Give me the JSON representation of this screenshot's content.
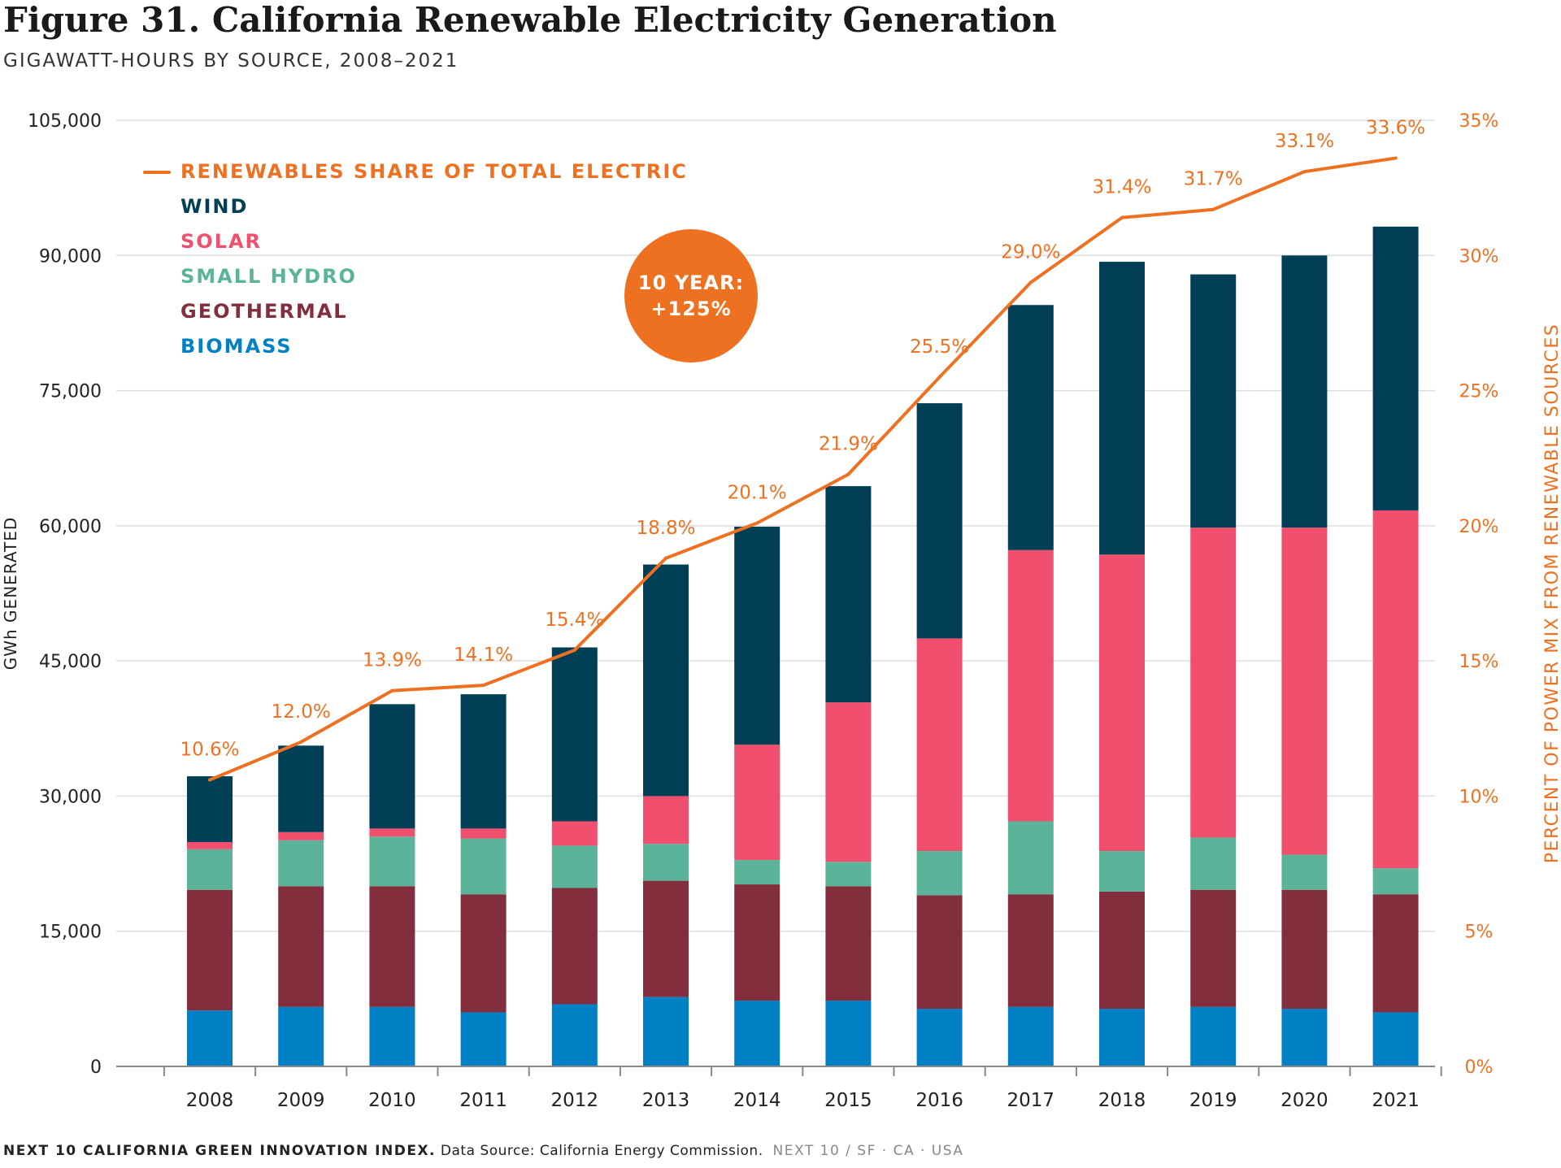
{
  "header": {
    "title": "Figure 31. California Renewable Electricity Generation",
    "subtitle": "GIGAWATT-HOURS BY SOURCE, 2008–2021"
  },
  "badge": {
    "line1": "10 YEAR:",
    "line2": "+125%"
  },
  "footer": {
    "brand": "NEXT 10 CALIFORNIA GREEN INNOVATION INDEX.",
    "source": "Data Source: California Energy Commission.",
    "tag": "NEXT 10  /  SF · CA · USA"
  },
  "colors": {
    "wind": "#003f56",
    "solar": "#f0506e",
    "small_hydro": "#5bb399",
    "geothermal": "#832e3c",
    "biomass": "#0081c6",
    "share_line": "#ee7122",
    "grid": "#dddddd",
    "axis": "#888888"
  },
  "chart_data": {
    "type": "bar",
    "stacked": true,
    "categories": [
      "2008",
      "2009",
      "2010",
      "2011",
      "2012",
      "2013",
      "2014",
      "2015",
      "2016",
      "2017",
      "2018",
      "2019",
      "2020",
      "2021"
    ],
    "ylabel": "GWh GENERATED",
    "ylim": [
      0,
      105000
    ],
    "yticks": [
      0,
      15000,
      30000,
      45000,
      60000,
      75000,
      90000,
      105000
    ],
    "ytick_labels": [
      "0",
      "15,000",
      "30,000",
      "45,000",
      "60,000",
      "75,000",
      "90,000",
      "105,000"
    ],
    "y2label": "PERCENT OF POWER MIX FROM RENEWABLE SOURCES",
    "y2lim": [
      0,
      35
    ],
    "y2ticks": [
      0,
      5,
      10,
      15,
      20,
      25,
      30,
      35
    ],
    "y2tick_labels": [
      "0%",
      "5%",
      "10%",
      "15%",
      "20%",
      "25%",
      "30%",
      "35%"
    ],
    "grid": true,
    "legend_position": "top-left",
    "series": [
      {
        "name": "BIOMASS",
        "color_key": "biomass",
        "values": [
          6200,
          6600,
          6600,
          6000,
          6900,
          7700,
          7300,
          7300,
          6400,
          6600,
          6400,
          6600,
          6400,
          6000
        ]
      },
      {
        "name": "GEOTHERMAL",
        "color_key": "geothermal",
        "values": [
          13400,
          13400,
          13400,
          13100,
          12900,
          12900,
          12900,
          12700,
          12600,
          12500,
          13000,
          13000,
          13200,
          13100
        ]
      },
      {
        "name": "SMALL HYDRO",
        "color_key": "small_hydro",
        "values": [
          4500,
          5100,
          5500,
          6200,
          4700,
          4100,
          2700,
          2700,
          4900,
          8100,
          4500,
          5800,
          3900,
          2900
        ]
      },
      {
        "name": "SOLAR",
        "color_key": "solar",
        "values": [
          800,
          900,
          900,
          1100,
          2700,
          5300,
          12800,
          17700,
          23600,
          30100,
          32900,
          34400,
          36300,
          39700
        ]
      },
      {
        "name": "WIND",
        "color_key": "wind",
        "values": [
          7300,
          9600,
          13800,
          14900,
          19300,
          25700,
          24200,
          24000,
          26100,
          27200,
          32500,
          28100,
          30200,
          31500
        ]
      }
    ],
    "line_series": {
      "name": "RENEWABLES SHARE OF TOTAL ELECTRIC",
      "axis": "right",
      "values": [
        10.6,
        12.0,
        13.9,
        14.1,
        15.4,
        18.8,
        20.1,
        21.9,
        25.5,
        29.0,
        31.4,
        31.7,
        33.1,
        33.6
      ],
      "labels": [
        "10.6%",
        "12.0%",
        "13.9%",
        "14.1%",
        "15.4%",
        "18.8%",
        "20.1%",
        "21.9%",
        "25.5%",
        "29.0%",
        "31.4%",
        "31.7%",
        "33.1%",
        "33.6%"
      ]
    },
    "legend": [
      {
        "label": "RENEWABLES SHARE OF TOTAL ELECTRIC",
        "color_key": "share_line"
      },
      {
        "label": "WIND",
        "color_key": "wind"
      },
      {
        "label": "SOLAR",
        "color_key": "solar"
      },
      {
        "label": "SMALL HYDRO",
        "color_key": "small_hydro"
      },
      {
        "label": "GEOTHERMAL",
        "color_key": "geothermal"
      },
      {
        "label": "BIOMASS",
        "color_key": "biomass"
      }
    ]
  }
}
